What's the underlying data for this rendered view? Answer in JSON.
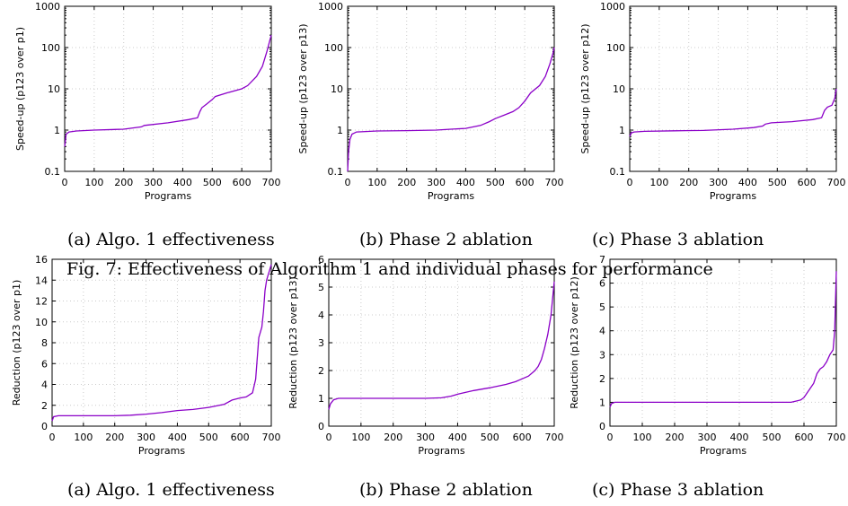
{
  "captions": {
    "top": [
      "(a) Algo. 1 effectiveness",
      "(b) Phase 2 ablation",
      "(c) Phase 3 ablation"
    ],
    "figure": "Fig. 7: Effectiveness of Algorithm 1 and individual phases for performance",
    "bottom": [
      "(a) Algo. 1 effectiveness",
      "(b) Phase 2 ablation",
      "(c) Phase 3 ablation"
    ]
  },
  "style": {
    "line_color": "#8b00c8",
    "grid_color": "#cccccc"
  },
  "chart_data": [
    {
      "type": "line",
      "scale": "log",
      "xlabel": "Programs",
      "ylabel": "Speed-up (p123 over p1)",
      "xlim": [
        0,
        700
      ],
      "ylim": [
        0.1,
        1000
      ],
      "xticks": [
        "0",
        "100",
        "200",
        "300",
        "400",
        "500",
        "600",
        "700"
      ],
      "yticks": [
        "0.1",
        "1",
        "10",
        "100",
        "1000"
      ],
      "series": [
        {
          "x": [
            0,
            5,
            15,
            40,
            100,
            200,
            260,
            270,
            350,
            420,
            450,
            458,
            465,
            480,
            500,
            510,
            550,
            600,
            620,
            650,
            670,
            685,
            695,
            700
          ],
          "y": [
            0.4,
            0.8,
            0.9,
            0.95,
            1.0,
            1.05,
            1.2,
            1.3,
            1.5,
            1.8,
            2.0,
            2.8,
            3.5,
            4.2,
            5.5,
            6.5,
            8.0,
            10.0,
            12.0,
            20.0,
            35.0,
            80.0,
            150.0,
            200.0
          ]
        }
      ]
    },
    {
      "type": "line",
      "scale": "log",
      "xlabel": "Programs",
      "ylabel": "Speed-up (p123 over p13)",
      "xlim": [
        0,
        700
      ],
      "ylim": [
        0.1,
        1000
      ],
      "xticks": [
        "0",
        "100",
        "200",
        "300",
        "400",
        "500",
        "600",
        "700"
      ],
      "yticks": [
        "0.1",
        "1",
        "10",
        "100",
        "1000"
      ],
      "series": [
        {
          "x": [
            0,
            3,
            8,
            15,
            30,
            100,
            200,
            300,
            350,
            400,
            450,
            480,
            500,
            530,
            560,
            580,
            600,
            620,
            650,
            670,
            685,
            695,
            700
          ],
          "y": [
            0.1,
            0.3,
            0.6,
            0.8,
            0.9,
            0.95,
            0.97,
            1.0,
            1.05,
            1.1,
            1.3,
            1.6,
            1.9,
            2.3,
            2.8,
            3.5,
            5.0,
            8.0,
            12.0,
            20.0,
            40.0,
            70.0,
            100.0
          ]
        }
      ]
    },
    {
      "type": "line",
      "scale": "log",
      "xlabel": "Programs",
      "ylabel": "Speed-up (p123 over p12)",
      "xlim": [
        0,
        700
      ],
      "ylim": [
        0.1,
        1000
      ],
      "xticks": [
        "0",
        "100",
        "200",
        "300",
        "400",
        "500",
        "600",
        "700"
      ],
      "yticks": [
        "0.1",
        "1",
        "10",
        "100",
        "1000"
      ],
      "series": [
        {
          "x": [
            0,
            5,
            15,
            50,
            150,
            250,
            350,
            420,
            450,
            460,
            480,
            550,
            620,
            650,
            660,
            670,
            685,
            695,
            700
          ],
          "y": [
            0.7,
            0.85,
            0.9,
            0.93,
            0.96,
            0.98,
            1.05,
            1.15,
            1.25,
            1.4,
            1.5,
            1.6,
            1.8,
            2.0,
            3.0,
            3.6,
            4.0,
            6.0,
            10.0
          ]
        }
      ]
    },
    {
      "type": "line",
      "scale": "linear",
      "xlabel": "Programs",
      "ylabel": "Reduction (p123 over p1)",
      "xlim": [
        0,
        700
      ],
      "ylim": [
        0,
        16
      ],
      "xticks": [
        "0",
        "100",
        "200",
        "300",
        "400",
        "500",
        "600",
        "700"
      ],
      "yticks": [
        "0",
        "2",
        "4",
        "6",
        "8",
        "10",
        "12",
        "14",
        "16"
      ],
      "series": [
        {
          "x": [
            0,
            5,
            20,
            100,
            200,
            250,
            300,
            350,
            400,
            450,
            500,
            550,
            575,
            600,
            620,
            640,
            650,
            660,
            665,
            670,
            675,
            680,
            685,
            690,
            695,
            700
          ],
          "y": [
            0.5,
            0.9,
            1.0,
            1.0,
            1.0,
            1.05,
            1.15,
            1.3,
            1.5,
            1.6,
            1.8,
            2.1,
            2.5,
            2.7,
            2.8,
            3.2,
            4.5,
            8.5,
            9.0,
            9.5,
            11.0,
            13.0,
            14.0,
            14.5,
            15.0,
            15.5
          ]
        }
      ]
    },
    {
      "type": "line",
      "scale": "linear",
      "xlabel": "Programs",
      "ylabel": "Reduction (p123 over p13)",
      "xlim": [
        0,
        700
      ],
      "ylim": [
        0,
        6
      ],
      "xticks": [
        "0",
        "100",
        "200",
        "300",
        "400",
        "500",
        "600",
        "700"
      ],
      "yticks": [
        "0",
        "1",
        "2",
        "3",
        "4",
        "5",
        "6"
      ],
      "series": [
        {
          "x": [
            0,
            5,
            15,
            30,
            100,
            200,
            300,
            350,
            380,
            400,
            450,
            500,
            550,
            580,
            600,
            620,
            640,
            650,
            660,
            670,
            680,
            690,
            695,
            700
          ],
          "y": [
            0.6,
            0.8,
            0.95,
            1.0,
            1.0,
            1.0,
            1.0,
            1.02,
            1.08,
            1.15,
            1.28,
            1.38,
            1.5,
            1.6,
            1.7,
            1.8,
            2.0,
            2.15,
            2.4,
            2.8,
            3.3,
            4.0,
            4.6,
            5.2
          ]
        }
      ]
    },
    {
      "type": "line",
      "scale": "linear",
      "xlabel": "Programs",
      "ylabel": "Reduction (p123 over p12)",
      "xlim": [
        0,
        700
      ],
      "ylim": [
        0,
        7
      ],
      "xticks": [
        "0",
        "100",
        "200",
        "300",
        "400",
        "500",
        "600",
        "700"
      ],
      "yticks": [
        "0",
        "1",
        "2",
        "3",
        "4",
        "5",
        "6",
        "7"
      ],
      "series": [
        {
          "x": [
            0,
            5,
            15,
            100,
            300,
            500,
            560,
            575,
            590,
            600,
            610,
            620,
            630,
            640,
            650,
            660,
            670,
            680,
            690,
            695,
            700
          ],
          "y": [
            0.8,
            0.95,
            1.0,
            1.0,
            1.0,
            1.0,
            1.0,
            1.05,
            1.1,
            1.2,
            1.4,
            1.6,
            1.8,
            2.2,
            2.4,
            2.5,
            2.7,
            3.0,
            3.2,
            4.0,
            6.5
          ]
        }
      ]
    }
  ]
}
